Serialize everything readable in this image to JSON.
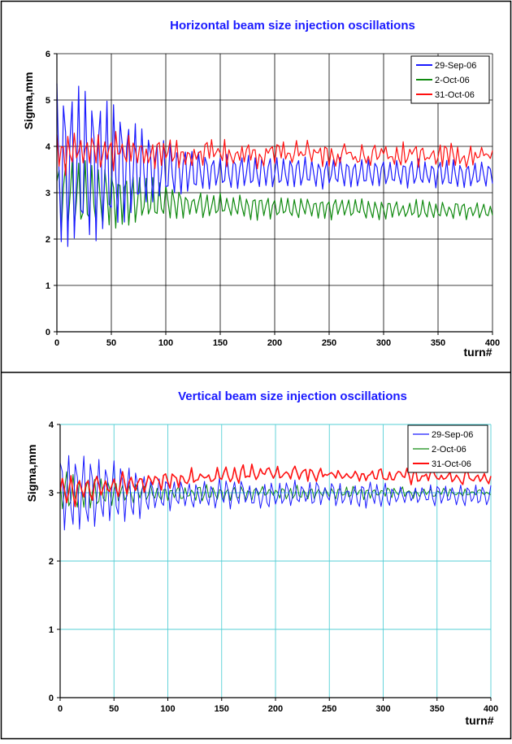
{
  "chart_data": [
    {
      "type": "line",
      "title": "Horizontal beam size injection oscillations",
      "xlabel": "turn#",
      "ylabel": "Sigma,mm",
      "xlim": [
        0,
        400
      ],
      "ylim": [
        0,
        6
      ],
      "x_ticks": [
        "0",
        "50",
        "100",
        "150",
        "200",
        "250",
        "300",
        "350",
        "400"
      ],
      "y_ticks": [
        "0",
        "1",
        "2",
        "3",
        "4",
        "5",
        "6"
      ],
      "grid": "major, black",
      "legend_position": "top-right",
      "x_step": 2,
      "series": [
        {
          "name": "29-Sep-06",
          "color": "#1a1aff",
          "mean": [
            [
              0,
              3.6
            ],
            [
              60,
              3.55
            ],
            [
              100,
              3.5
            ],
            [
              150,
              3.45
            ],
            [
              400,
              3.4
            ]
          ],
          "amplitude": [
            [
              0,
              1.85
            ],
            [
              40,
              1.6
            ],
            [
              90,
              0.7
            ],
            [
              140,
              0.35
            ],
            [
              400,
              0.25
            ]
          ],
          "period": 6.5,
          "phase": 1.3,
          "noise": 0.05,
          "seed": 11
        },
        {
          "name": "2-Oct-06",
          "color": "#108a10",
          "mean": [
            [
              0,
              2.95
            ],
            [
              80,
              2.85
            ],
            [
              150,
              2.7
            ],
            [
              400,
              2.6
            ]
          ],
          "amplitude": [
            [
              0,
              0.85
            ],
            [
              60,
              0.6
            ],
            [
              120,
              0.25
            ],
            [
              400,
              0.15
            ]
          ],
          "period": 6.2,
          "phase": 0.4,
          "noise": 0.06,
          "seed": 23
        },
        {
          "name": "31-Oct-06",
          "color": "#ff1010",
          "mean": [
            [
              0,
              3.95
            ],
            [
              100,
              3.85
            ],
            [
              400,
              3.8
            ]
          ],
          "amplitude": [
            [
              0,
              0.45
            ],
            [
              100,
              0.2
            ],
            [
              400,
              0.12
            ]
          ],
          "period": 5.5,
          "phase": 2.1,
          "noise": 0.17,
          "seed": 37
        }
      ]
    },
    {
      "type": "line",
      "title": "Vertical beam size injection oscillations",
      "xlabel": "turn#",
      "ylabel": "Sigma,mm",
      "xlim": [
        0,
        400
      ],
      "ylim": [
        0,
        4
      ],
      "x_ticks": [
        "0",
        "50",
        "100",
        "150",
        "200",
        "250",
        "300",
        "350",
        "400"
      ],
      "y_ticks": [
        "0",
        "1",
        "2",
        "3",
        "4"
      ],
      "grid": "major, cyan",
      "legend_position": "top-right",
      "x_step": 2,
      "series": [
        {
          "name": "29-Sep-06",
          "color": "#1a1aff",
          "mean": [
            [
              0,
              3.0
            ],
            [
              400,
              2.95
            ]
          ],
          "amplitude": [
            [
              0,
              0.6
            ],
            [
              50,
              0.45
            ],
            [
              100,
              0.2
            ],
            [
              400,
              0.1
            ]
          ],
          "period": 7,
          "phase": 0.9,
          "noise": 0.06,
          "seed": 51
        },
        {
          "name": "2-Oct-06",
          "color": "#108a10",
          "mean": [
            [
              0,
              3.0
            ],
            [
              400,
              3.0
            ]
          ],
          "amplitude": [
            [
              0,
              0.3
            ],
            [
              80,
              0.1
            ],
            [
              400,
              0.04
            ]
          ],
          "period": 6.5,
          "phase": 2.4,
          "noise": 0.04,
          "seed": 63
        },
        {
          "name": "31-Oct-06",
          "color": "#ff1010",
          "mean": [
            [
              0,
              3.02
            ],
            [
              100,
              3.2
            ],
            [
              200,
              3.3
            ],
            [
              300,
              3.25
            ],
            [
              400,
              3.22
            ]
          ],
          "amplitude": [
            [
              0,
              0.2
            ],
            [
              100,
              0.08
            ],
            [
              400,
              0.05
            ]
          ],
          "period": 8,
          "phase": 0.2,
          "noise": 0.07,
          "seed": 79
        }
      ]
    }
  ]
}
